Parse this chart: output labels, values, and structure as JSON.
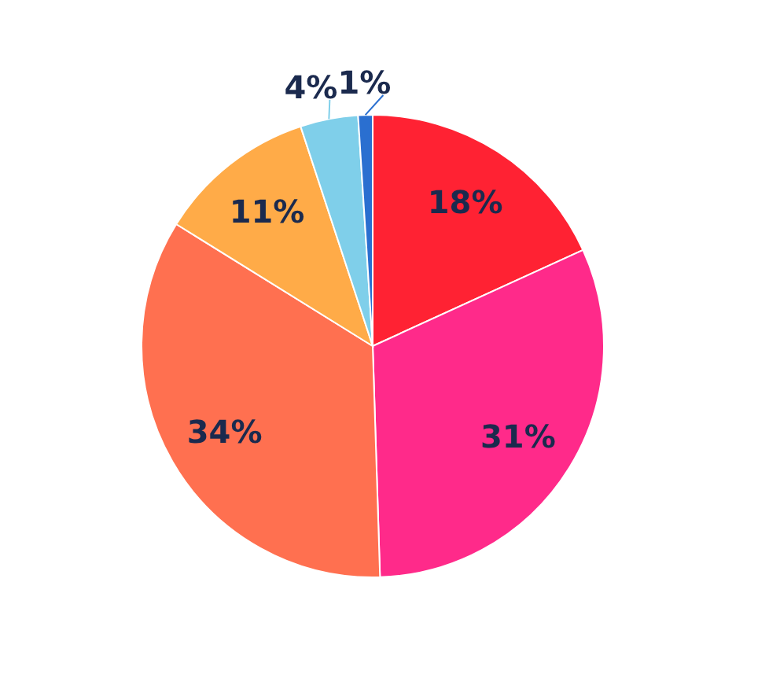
{
  "chart_data": {
    "type": "pie",
    "categories": [
      null,
      null,
      null,
      null,
      null,
      null
    ],
    "values": [
      18,
      31,
      34,
      11,
      4,
      1
    ],
    "colors": [
      "#ff2233",
      "#ff2a8a",
      "#ff7050",
      "#ffab48",
      "#7fcfea",
      "#2a6fd0"
    ],
    "value_labels": [
      "18%",
      "31%",
      "34%",
      "11%",
      "4%",
      "1%"
    ]
  }
}
